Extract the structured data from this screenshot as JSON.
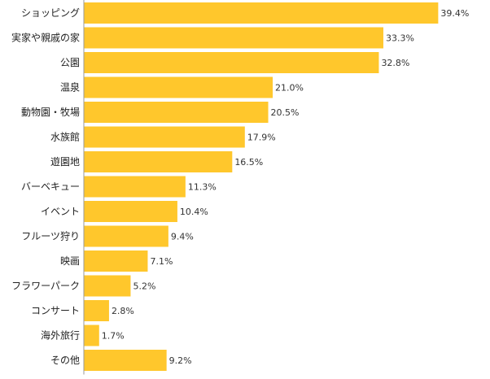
{
  "chart_data": {
    "type": "bar",
    "orientation": "horizontal",
    "title": "",
    "xlabel": "",
    "ylabel": "",
    "unit": "%",
    "xlim": [
      0,
      45
    ],
    "grid": false,
    "legend": "none",
    "bar_color": "#FFC72C",
    "axis_color": "#999999",
    "categories": [
      "ショッピング",
      "実家や親戚の家",
      "公園",
      "温泉",
      "動物園・牧場",
      "水族館",
      "遊園地",
      "バーベキュー",
      "イベント",
      "フルーツ狩り",
      "映画",
      "フラワーパーク",
      "コンサート",
      "海外旅行",
      "その他"
    ],
    "values": [
      39.4,
      33.3,
      32.8,
      21.0,
      20.5,
      17.9,
      16.5,
      11.3,
      10.4,
      9.4,
      7.1,
      5.2,
      2.8,
      1.7,
      9.2
    ],
    "value_labels": [
      "39.4%",
      "33.3%",
      "32.8%",
      "21.0%",
      "20.5%",
      "17.9%",
      "16.5%",
      "11.3%",
      "10.4%",
      "9.4%",
      "7.1%",
      "5.2%",
      "2.8%",
      "1.7%",
      "9.2%"
    ]
  }
}
